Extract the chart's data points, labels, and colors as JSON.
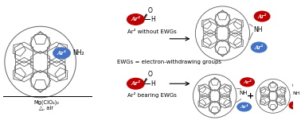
{
  "bg_color": "#ffffff",
  "line_color": "#666666",
  "ar1_fill": "#4472c4",
  "ar2_fill": "#c00000",
  "ar_text_color": "#ffffff",
  "label_mg": "Mg(ClO₄)₂",
  "label_delta": "△, air",
  "label_nh2": "NH₂",
  "label_ewg": "EWGs = electron-withdrawing groups",
  "label_ar2_no_ewg": "Ar² without EWGs",
  "label_ar2_ewg": "Ar² bearing EWGs",
  "label_nh": "NH",
  "label_ar1": "Ar¹",
  "label_ar2": "Ar²",
  "label_plus": "+",
  "label_h": "H",
  "label_o": "O",
  "lw": 0.55
}
